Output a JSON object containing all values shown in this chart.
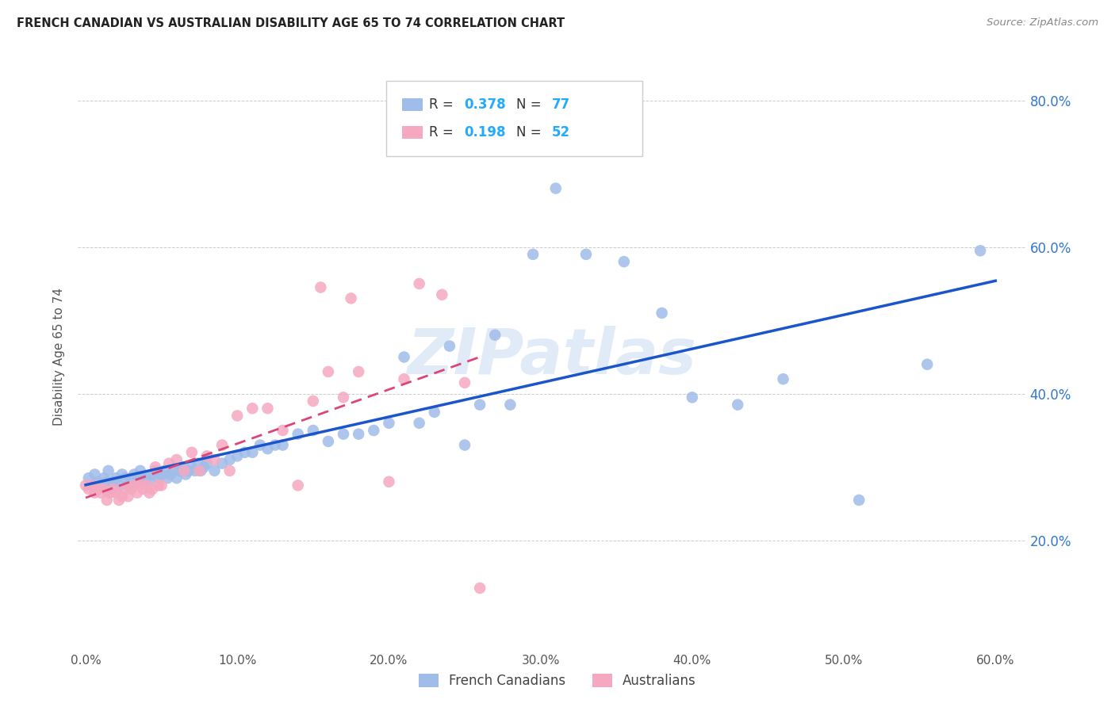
{
  "title": "FRENCH CANADIAN VS AUSTRALIAN DISABILITY AGE 65 TO 74 CORRELATION CHART",
  "source": "Source: ZipAtlas.com",
  "ylabel": "Disability Age 65 to 74",
  "xlim": [
    -0.005,
    0.62
  ],
  "ylim": [
    0.05,
    0.85
  ],
  "yticks": [
    0.2,
    0.4,
    0.6,
    0.8
  ],
  "xticks": [
    0.0,
    0.1,
    0.2,
    0.3,
    0.4,
    0.5,
    0.6
  ],
  "legend_blue_R": "0.378",
  "legend_blue_N": "77",
  "legend_pink_R": "0.198",
  "legend_pink_N": "52",
  "legend_label_blue": "French Canadians",
  "legend_label_pink": "Australians",
  "blue_color": "#a0bce8",
  "pink_color": "#f5a8c0",
  "blue_line_color": "#1a55cc",
  "pink_line_color": "#dd4477",
  "watermark": "ZIPatlas",
  "blue_x": [
    0.002,
    0.004,
    0.006,
    0.008,
    0.01,
    0.012,
    0.014,
    0.015,
    0.016,
    0.018,
    0.02,
    0.022,
    0.024,
    0.026,
    0.028,
    0.03,
    0.032,
    0.034,
    0.036,
    0.038,
    0.04,
    0.042,
    0.044,
    0.046,
    0.048,
    0.05,
    0.052,
    0.054,
    0.056,
    0.058,
    0.06,
    0.062,
    0.064,
    0.066,
    0.068,
    0.07,
    0.072,
    0.074,
    0.076,
    0.078,
    0.08,
    0.085,
    0.09,
    0.095,
    0.1,
    0.105,
    0.11,
    0.115,
    0.12,
    0.125,
    0.13,
    0.14,
    0.15,
    0.16,
    0.17,
    0.18,
    0.19,
    0.2,
    0.21,
    0.22,
    0.23,
    0.24,
    0.25,
    0.26,
    0.27,
    0.28,
    0.295,
    0.31,
    0.33,
    0.355,
    0.38,
    0.4,
    0.43,
    0.46,
    0.51,
    0.555,
    0.59
  ],
  "blue_y": [
    0.285,
    0.275,
    0.29,
    0.28,
    0.275,
    0.285,
    0.28,
    0.295,
    0.27,
    0.28,
    0.285,
    0.275,
    0.29,
    0.285,
    0.275,
    0.285,
    0.29,
    0.28,
    0.295,
    0.285,
    0.285,
    0.28,
    0.29,
    0.295,
    0.285,
    0.29,
    0.295,
    0.285,
    0.29,
    0.295,
    0.285,
    0.295,
    0.3,
    0.29,
    0.295,
    0.3,
    0.295,
    0.305,
    0.295,
    0.3,
    0.305,
    0.295,
    0.305,
    0.31,
    0.315,
    0.32,
    0.32,
    0.33,
    0.325,
    0.33,
    0.33,
    0.345,
    0.35,
    0.335,
    0.345,
    0.345,
    0.35,
    0.36,
    0.45,
    0.36,
    0.375,
    0.465,
    0.33,
    0.385,
    0.48,
    0.385,
    0.59,
    0.68,
    0.59,
    0.58,
    0.51,
    0.395,
    0.385,
    0.42,
    0.255,
    0.44,
    0.595
  ],
  "pink_x": [
    0.0,
    0.002,
    0.004,
    0.006,
    0.008,
    0.01,
    0.012,
    0.014,
    0.016,
    0.018,
    0.02,
    0.022,
    0.024,
    0.026,
    0.028,
    0.03,
    0.032,
    0.034,
    0.036,
    0.038,
    0.04,
    0.042,
    0.044,
    0.046,
    0.048,
    0.05,
    0.055,
    0.06,
    0.065,
    0.07,
    0.075,
    0.08,
    0.085,
    0.09,
    0.095,
    0.1,
    0.11,
    0.12,
    0.13,
    0.14,
    0.15,
    0.155,
    0.16,
    0.17,
    0.175,
    0.18,
    0.2,
    0.21,
    0.22,
    0.235,
    0.25,
    0.26
  ],
  "pink_y": [
    0.275,
    0.27,
    0.275,
    0.265,
    0.27,
    0.265,
    0.27,
    0.255,
    0.265,
    0.27,
    0.265,
    0.255,
    0.26,
    0.27,
    0.26,
    0.27,
    0.275,
    0.265,
    0.275,
    0.27,
    0.275,
    0.265,
    0.27,
    0.3,
    0.275,
    0.275,
    0.305,
    0.31,
    0.295,
    0.32,
    0.295,
    0.315,
    0.31,
    0.33,
    0.295,
    0.37,
    0.38,
    0.38,
    0.35,
    0.275,
    0.39,
    0.545,
    0.43,
    0.395,
    0.53,
    0.43,
    0.28,
    0.42,
    0.55,
    0.535,
    0.415,
    0.135
  ]
}
